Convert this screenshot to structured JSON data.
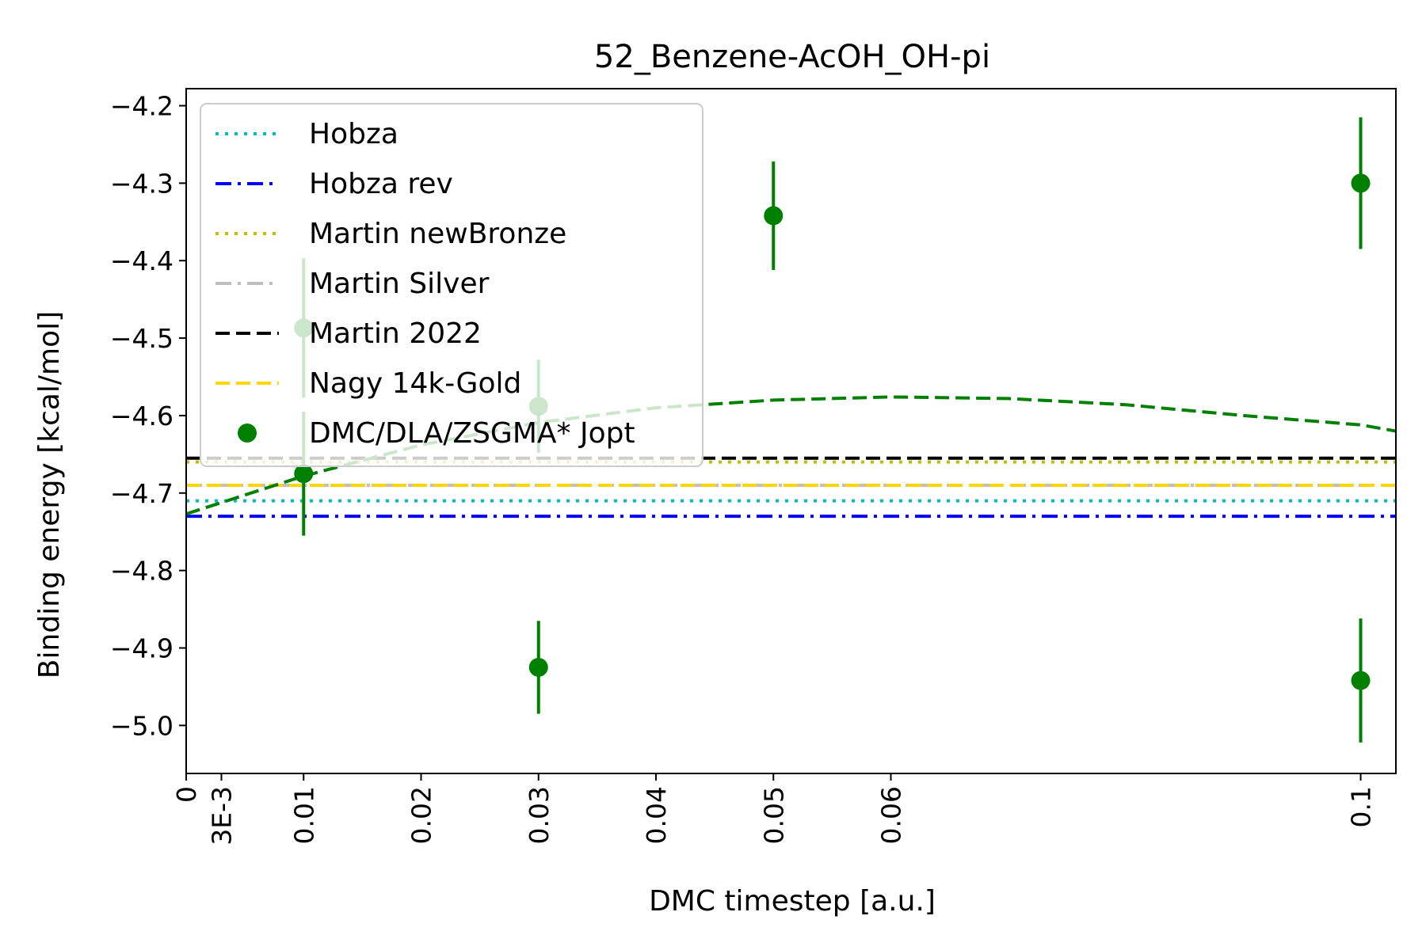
{
  "chart_data": {
    "type": "scatter",
    "title": "52_Benzene-AcOH_OH-pi",
    "xlabel": "DMC timestep [a.u.]",
    "ylabel": "Binding energy [kcal/mol]",
    "xlim": [
      0,
      0.103
    ],
    "ylim": [
      -5.062,
      -4.178
    ],
    "x_ticks": [
      {
        "value": 0,
        "label": "0"
      },
      {
        "value": 0.003,
        "label": "3E-3"
      },
      {
        "value": 0.01,
        "label": "0.01"
      },
      {
        "value": 0.02,
        "label": "0.02"
      },
      {
        "value": 0.03,
        "label": "0.03"
      },
      {
        "value": 0.04,
        "label": "0.04"
      },
      {
        "value": 0.05,
        "label": "0.05"
      },
      {
        "value": 0.06,
        "label": "0.06"
      },
      {
        "value": 0.1,
        "label": "0.1"
      }
    ],
    "y_ticks": [
      {
        "value": -4.2,
        "label": "−4.2"
      },
      {
        "value": -4.3,
        "label": "−4.3"
      },
      {
        "value": -4.4,
        "label": "−4.4"
      },
      {
        "value": -4.5,
        "label": "−4.5"
      },
      {
        "value": -4.6,
        "label": "−4.6"
      },
      {
        "value": -4.7,
        "label": "−4.7"
      },
      {
        "value": -4.8,
        "label": "−4.8"
      },
      {
        "value": -4.9,
        "label": "−4.9"
      },
      {
        "value": -5.0,
        "label": "−5.0"
      }
    ],
    "reference_lines": [
      {
        "name": "Hobza",
        "y": -4.71,
        "color": "#00bfbf",
        "style": "dotted"
      },
      {
        "name": "Hobza rev",
        "y": -4.73,
        "color": "#0000ff",
        "style": "dashdot"
      },
      {
        "name": "Martin newBronze",
        "y": -4.66,
        "color": "#bfbf00",
        "style": "dotted"
      },
      {
        "name": "Martin Silver",
        "y": -4.69,
        "color": "#c0c0c0",
        "style": "dashdot"
      },
      {
        "name": "Martin 2022",
        "y": -4.655,
        "color": "#000000",
        "style": "dashed"
      },
      {
        "name": "Nagy 14k-Gold",
        "y": -4.69,
        "color": "#ffd700",
        "style": "dashed"
      }
    ],
    "series": [
      {
        "name": "DMC/DLA/ZSGMA* Jopt",
        "color": "#008000",
        "points": [
          {
            "x": 0.01,
            "y": -4.487,
            "err": 0.09
          },
          {
            "x": 0.01,
            "y": -4.675,
            "err": 0.08
          },
          {
            "x": 0.03,
            "y": -4.588,
            "err": 0.06
          },
          {
            "x": 0.03,
            "y": -4.925,
            "err": 0.06
          },
          {
            "x": 0.05,
            "y": -4.342,
            "err": 0.07
          },
          {
            "x": 0.1,
            "y": -4.3,
            "err": 0.085
          },
          {
            "x": 0.1,
            "y": -4.942,
            "err": 0.08
          }
        ]
      }
    ],
    "fit": {
      "color": "#008000",
      "style": "dashed",
      "points": [
        {
          "x": 0,
          "y": -4.727
        },
        {
          "x": 0.01,
          "y": -4.678
        },
        {
          "x": 0.02,
          "y": -4.638
        },
        {
          "x": 0.03,
          "y": -4.609
        },
        {
          "x": 0.04,
          "y": -4.59
        },
        {
          "x": 0.05,
          "y": -4.58
        },
        {
          "x": 0.06,
          "y": -4.576
        },
        {
          "x": 0.07,
          "y": -4.578
        },
        {
          "x": 0.08,
          "y": -4.586
        },
        {
          "x": 0.09,
          "y": -4.6
        },
        {
          "x": 0.1,
          "y": -4.612
        },
        {
          "x": 0.103,
          "y": -4.62
        }
      ]
    },
    "legend": {
      "position": "upper-left",
      "entries": [
        "Hobza",
        "Hobza rev",
        "Martin newBronze",
        "Martin Silver",
        "Martin 2022",
        "Nagy 14k-Gold",
        "DMC/DLA/ZSGMA* Jopt"
      ]
    },
    "grid": false
  }
}
